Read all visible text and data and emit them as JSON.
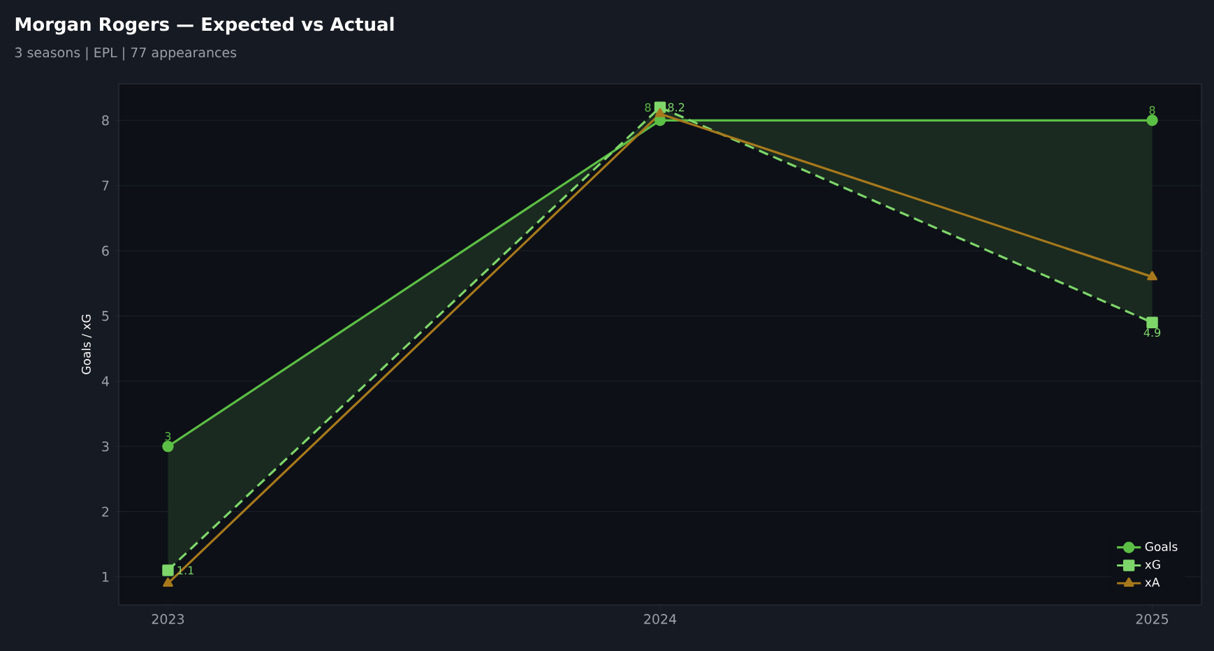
{
  "chart_data": {
    "type": "line",
    "title": "Morgan Rogers — Expected vs Actual",
    "subtitle": "3 seasons | EPL | 77 appearances",
    "ylabel": "Goals / xG",
    "x": [
      2023,
      2024,
      2025
    ],
    "xlim": [
      2022.9,
      2025.1
    ],
    "xticks": [
      2023,
      2024,
      2025
    ],
    "ylim": [
      0.57,
      8.56
    ],
    "yticks": [
      1,
      2,
      3,
      4,
      5,
      6,
      7,
      8
    ],
    "grid": "y",
    "legend": "bottom right",
    "series": [
      {
        "name": "Goals",
        "color": "#5cbf45",
        "values": [
          3,
          8,
          8
        ],
        "marker": "circle",
        "line_style": "solid",
        "value_labels": [
          "3",
          "8",
          "8"
        ],
        "lower": [
          1.1,
          8.2,
          4.9
        ],
        "upper": [
          3,
          8,
          8
        ]
      },
      {
        "name": "xG",
        "color": "#7ed66a",
        "values": [
          1.1,
          8.2,
          4.9
        ],
        "marker": "square",
        "line_style": "dashed",
        "value_labels": [
          "1.1",
          "8.2",
          "4.9"
        ]
      },
      {
        "name": "xA",
        "color": "#a7791c",
        "values": [
          0.9,
          8.1,
          5.6
        ],
        "marker": "triangle",
        "line_style": "solid"
      }
    ]
  }
}
